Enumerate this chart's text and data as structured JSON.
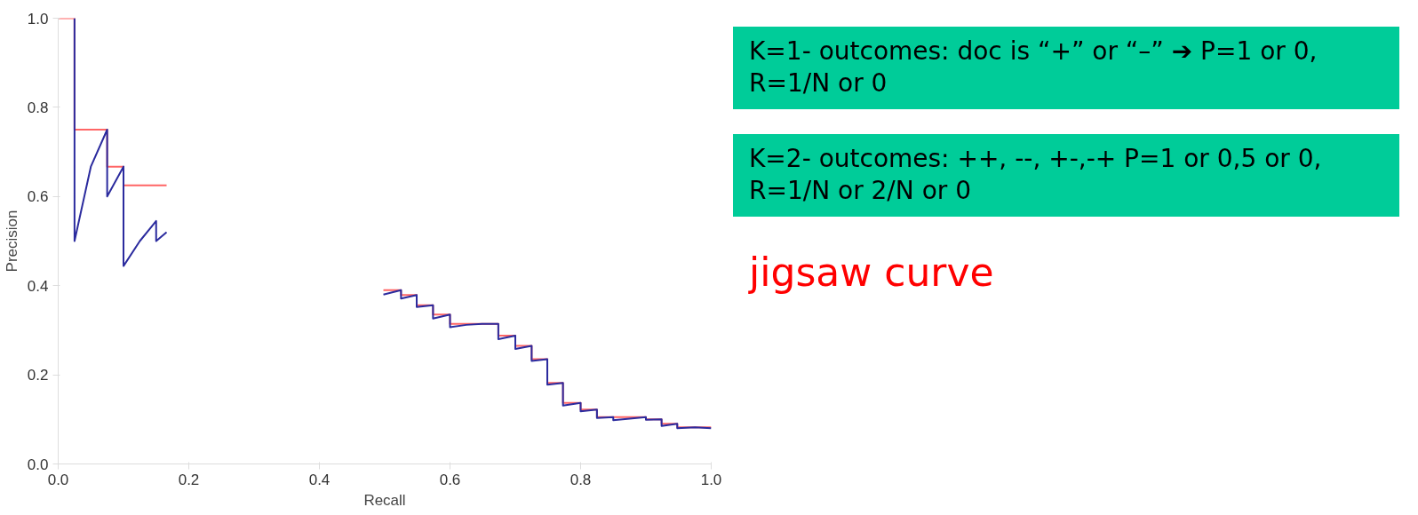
{
  "chart_data": {
    "type": "line",
    "xlabel": "Recall",
    "ylabel": "Precision",
    "xlim": [
      0,
      1
    ],
    "ylim": [
      0,
      1
    ],
    "xticks": [
      {
        "value": 0,
        "label": "0.0"
      },
      {
        "value": 0.2,
        "label": "0.2"
      },
      {
        "value": 0.4,
        "label": "0.4"
      },
      {
        "value": 0.6,
        "label": "0.6"
      },
      {
        "value": 0.8,
        "label": "0.8"
      },
      {
        "value": 1,
        "label": "1.0"
      }
    ],
    "yticks": [
      {
        "value": 0,
        "label": "0.0"
      },
      {
        "value": 0.2,
        "label": "0.2"
      },
      {
        "value": 0.4,
        "label": "0.4"
      },
      {
        "value": 0.6,
        "label": "0.6"
      },
      {
        "value": 0.8,
        "label": "0.8"
      },
      {
        "value": 1,
        "label": "1.0"
      }
    ],
    "grid": false,
    "marker": "none",
    "line_style": "solid",
    "series": [
      {
        "type": "step",
        "color": "#ff6666",
        "x": [
          0,
          0.025,
          0.075,
          0.1,
          0.166,
          0.3,
          0.498,
          0.525,
          0.549,
          0.574,
          0.6,
          0.674,
          0.7,
          0.725,
          0.749,
          0.773,
          0.8,
          0.825,
          0.9,
          0.924,
          0.948,
          1.0
        ],
        "values": [
          1,
          0.75,
          0.667,
          0.625,
          0.625,
          null,
          0.39,
          0.379,
          0.356,
          0.335,
          0.314,
          0.288,
          0.265,
          0.235,
          0.182,
          0.137,
          0.122,
          0.105,
          0.1,
          0.09,
          0.082,
          0.082
        ]
      },
      {
        "color": "#2b2b9e",
        "x": [
          0.025,
          0.025,
          0.05,
          0.075,
          0.075,
          0.1,
          0.1,
          0.125,
          0.15,
          0.15,
          0.166,
          0.3,
          0.498,
          0.525,
          0.525,
          0.549,
          0.549,
          0.574,
          0.574,
          0.6,
          0.6,
          0.625,
          0.649,
          0.674,
          0.674,
          0.7,
          0.7,
          0.725,
          0.725,
          0.749,
          0.749,
          0.773,
          0.773,
          0.8,
          0.8,
          0.825,
          0.825,
          0.85,
          0.85,
          0.9,
          0.9,
          0.924,
          0.924,
          0.948,
          0.948,
          0.975,
          1.0
        ],
        "values": [
          1,
          0.5,
          0.667,
          0.75,
          0.6,
          0.667,
          0.444,
          0.5,
          0.545,
          0.5,
          0.52,
          null,
          0.38,
          0.39,
          0.371,
          0.379,
          0.352,
          0.356,
          0.326,
          0.335,
          0.307,
          0.312,
          0.314,
          0.314,
          0.28,
          0.288,
          0.258,
          0.265,
          0.231,
          0.235,
          0.178,
          0.182,
          0.131,
          0.137,
          0.118,
          0.122,
          0.103,
          0.105,
          0.098,
          0.105,
          0.099,
          0.1,
          0.085,
          0.09,
          0.08,
          0.082,
          0.08
        ]
      }
    ],
    "annotations": [
      "K=1- outcomes: doc is  “+” or “–” ➔ P=1 or 0, R=1/N or 0",
      "K=2- outcomes: ++, --, +-,-+ P=1 or 0,5 or 0, R=1/N or 2/N or 0",
      "jigsaw curve"
    ]
  }
}
